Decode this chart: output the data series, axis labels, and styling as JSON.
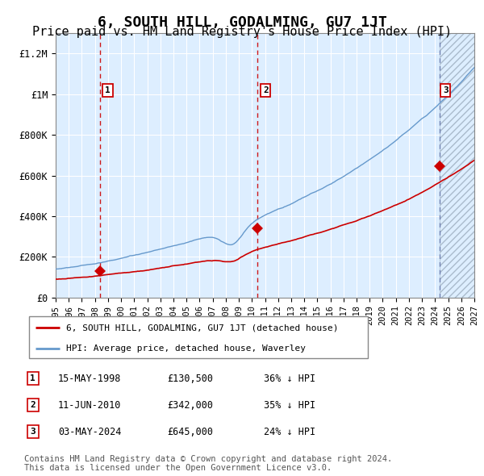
{
  "title": "6, SOUTH HILL, GODALMING, GU7 1JT",
  "subtitle": "Price paid vs. HM Land Registry's House Price Index (HPI)",
  "title_fontsize": 13,
  "subtitle_fontsize": 11,
  "year_start": 1995,
  "year_end": 2027,
  "ylim": [
    0,
    1300000
  ],
  "yticks": [
    0,
    200000,
    400000,
    600000,
    800000,
    1000000,
    1200000
  ],
  "ytick_labels": [
    "£0",
    "£200K",
    "£400K",
    "£600K",
    "£800K",
    "£1M",
    "£1.2M"
  ],
  "xtick_years": [
    1995,
    1996,
    1997,
    1998,
    1999,
    2000,
    2001,
    2002,
    2003,
    2004,
    2005,
    2006,
    2007,
    2008,
    2009,
    2010,
    2011,
    2012,
    2013,
    2014,
    2015,
    2016,
    2017,
    2018,
    2019,
    2020,
    2021,
    2022,
    2023,
    2024,
    2025,
    2026,
    2027
  ],
  "sale_dates": [
    1998.37,
    2010.44,
    2024.34
  ],
  "sale_prices": [
    130500,
    342000,
    645000
  ],
  "sale_labels": [
    "1",
    "2",
    "3"
  ],
  "sale_marker_color": "#cc0000",
  "hpi_line_color": "#6699cc",
  "price_line_color": "#cc0000",
  "bg_color": "#ddeeff",
  "legend_label_price": "6, SOUTH HILL, GODALMING, GU7 1JT (detached house)",
  "legend_label_hpi": "HPI: Average price, detached house, Waverley",
  "table_rows": [
    [
      "1",
      "15-MAY-1998",
      "£130,500",
      "36% ↓ HPI"
    ],
    [
      "2",
      "11-JUN-2010",
      "£342,000",
      "35% ↓ HPI"
    ],
    [
      "3",
      "03-MAY-2024",
      "£645,000",
      "24% ↓ HPI"
    ]
  ],
  "footnote": "Contains HM Land Registry data © Crown copyright and database right 2024.\nThis data is licensed under the Open Government Licence v3.0.",
  "footnote_fontsize": 7.5
}
